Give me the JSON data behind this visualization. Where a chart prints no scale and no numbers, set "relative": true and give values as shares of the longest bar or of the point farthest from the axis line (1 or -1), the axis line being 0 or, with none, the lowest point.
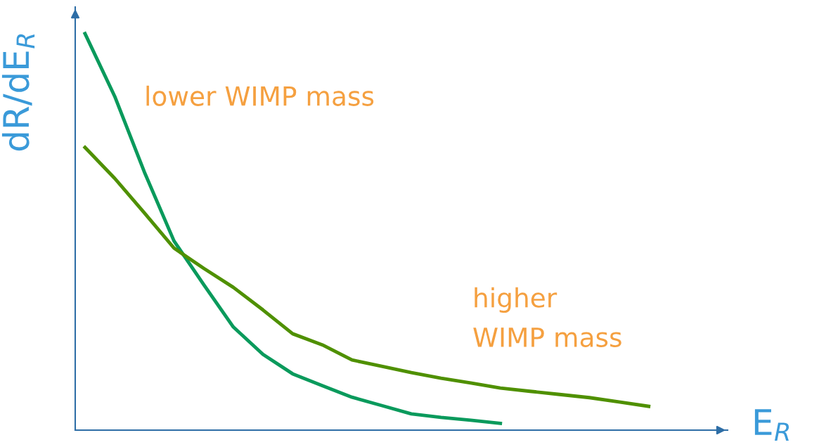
{
  "chart_data": {
    "type": "line",
    "relative": true,
    "ylabel": "dR/dE$_{R}$",
    "xlabel": "E$_{R}$",
    "marker": "none",
    "line_style": "solid",
    "categories": [
      null,
      null,
      null,
      null,
      null,
      null,
      null,
      null,
      null,
      null,
      null,
      null,
      null,
      null,
      null,
      null,
      null,
      null,
      null,
      null
    ],
    "series": [
      {
        "color": "#0a9a5c",
        "values": [
          1.0,
          0.842,
          0.651,
          0.477,
          0.367,
          0.26,
          0.191,
          0.142,
          0.112,
          0.083,
          0.062,
          0.041,
          0.032,
          0.025,
          0.017,
          null,
          null,
          null,
          null,
          null
        ]
      },
      {
        "color": "#4f9000",
        "values": [
          0.713,
          0.635,
          0.548,
          0.459,
          0.408,
          0.36,
          0.303,
          0.243,
          0.215,
          0.177,
          0.161,
          0.145,
          0.131,
          0.119,
          0.106,
          0.098,
          0.09,
          0.082,
          0.071,
          0.06
        ]
      }
    ],
    "annotations": [
      "lower WIMP mass",
      "higher\nWIMP mass"
    ]
  }
}
